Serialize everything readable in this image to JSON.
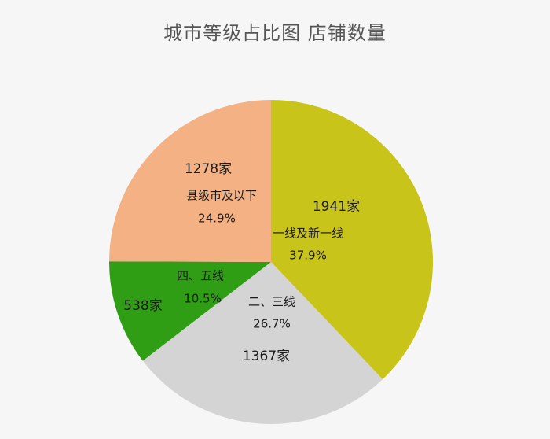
{
  "chart_data": {
    "type": "pie",
    "title": "城市等级占比图 店铺数量",
    "start_angle_deg": 0,
    "direction": "clockwise",
    "slices": [
      {
        "category": "一线及新一线",
        "count_label": "1941家",
        "value": 1941,
        "percent_label": "37.9%",
        "color": "#c9c41a"
      },
      {
        "category": "二、三线",
        "count_label": "1367家",
        "value": 1367,
        "percent_label": "26.7%",
        "color": "#d4d4d4"
      },
      {
        "category": "四、五线",
        "count_label": "538家",
        "value": 538,
        "percent_label": "10.5%",
        "color": "#2f9e14"
      },
      {
        "category": "县级市及以下",
        "count_label": "1278家",
        "value": 1278,
        "percent_label": "24.9%",
        "color": "#f4b183"
      }
    ]
  }
}
